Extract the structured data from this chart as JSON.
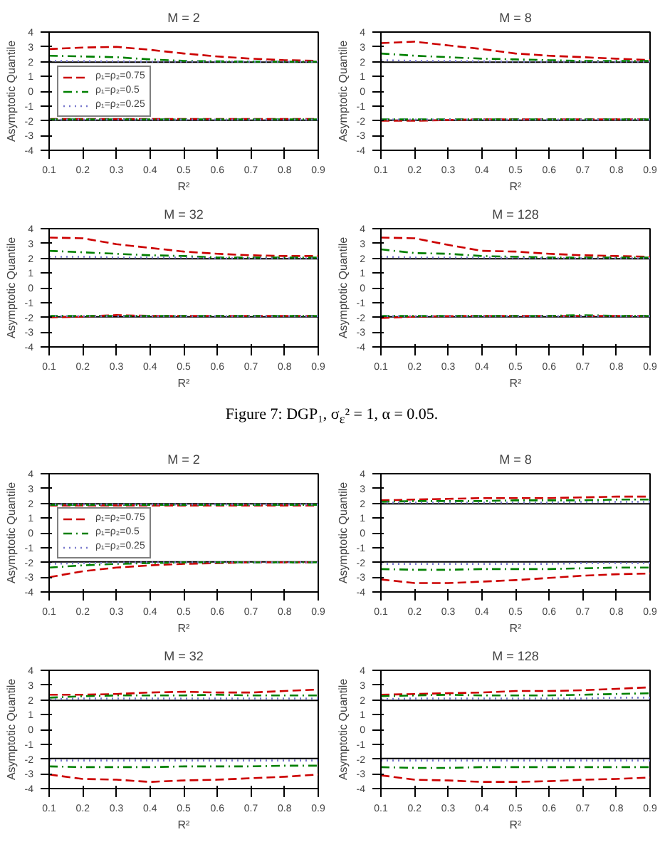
{
  "chart_data": [
    {
      "type": "line",
      "title": "M = 2",
      "xlabel": "R²",
      "ylabel": "Asymptotic Quantile",
      "x": [
        0.1,
        0.2,
        0.3,
        0.4,
        0.5,
        0.6,
        0.7,
        0.8,
        0.9
      ],
      "xlim": [
        0.1,
        0.9
      ],
      "xticks": [
        0.1,
        0.2,
        0.3,
        0.4,
        0.5,
        0.6,
        0.7,
        0.8,
        0.9
      ],
      "ylim": [
        -4,
        4
      ],
      "yticks": [
        -4,
        -3,
        -2,
        -1,
        0,
        1,
        2,
        3,
        4
      ],
      "grid": false,
      "legend": "left",
      "marker": "none",
      "ref_lines": [
        {
          "axis": "y",
          "value": 1.96,
          "color": "#000000"
        },
        {
          "axis": "y",
          "value": -1.96,
          "color": "#000000"
        }
      ],
      "series": [
        {
          "name": "ρ₁=ρ₂=0.75",
          "color": "#cc0000",
          "line_style": "dashed",
          "values": [
            2.85,
            2.95,
            3.0,
            2.8,
            2.55,
            2.35,
            2.2,
            2.1,
            2.05
          ]
        },
        {
          "name": "ρ₁=ρ₂=0.5",
          "color": "#008000",
          "line_style": "dashdot",
          "values": [
            2.4,
            2.35,
            2.3,
            2.15,
            2.05,
            2.02,
            2.0,
            2.0,
            2.0
          ]
        },
        {
          "name": "ρ₁=ρ₂=0.25",
          "color": "#7777cc",
          "line_style": "dotted",
          "values": [
            2.05,
            2.03,
            2.02,
            2.0,
            2.0,
            2.0,
            2.0,
            2.0,
            2.0
          ]
        },
        {
          "color": "#cc0000",
          "line_style": "dashed",
          "values": [
            -1.88,
            -1.88,
            -1.88,
            -1.88,
            -1.88,
            -1.88,
            -1.88,
            -1.88,
            -1.88
          ]
        },
        {
          "color": "#008000",
          "line_style": "dashdot",
          "values": [
            -1.9,
            -1.9,
            -1.9,
            -1.9,
            -1.9,
            -1.9,
            -1.9,
            -1.9,
            -1.9
          ]
        },
        {
          "color": "#7777cc",
          "line_style": "dotted",
          "values": [
            -1.92,
            -1.92,
            -1.92,
            -1.92,
            -1.92,
            -1.92,
            -1.92,
            -1.92,
            -1.92
          ]
        }
      ]
    },
    {
      "type": "line",
      "title": "M = 8",
      "xlabel": "R²",
      "ylabel": "Asymptotic Quantile",
      "x": [
        0.1,
        0.2,
        0.3,
        0.4,
        0.5,
        0.6,
        0.7,
        0.8,
        0.9
      ],
      "xlim": [
        0.1,
        0.9
      ],
      "xticks": [
        0.1,
        0.2,
        0.3,
        0.4,
        0.5,
        0.6,
        0.7,
        0.8,
        0.9
      ],
      "ylim": [
        -4,
        4
      ],
      "yticks": [
        -4,
        -3,
        -2,
        -1,
        0,
        1,
        2,
        3,
        4
      ],
      "grid": false,
      "legend": false,
      "marker": "none",
      "ref_lines": [
        {
          "axis": "y",
          "value": 1.96,
          "color": "#000000"
        },
        {
          "axis": "y",
          "value": -1.96,
          "color": "#000000"
        }
      ],
      "series": [
        {
          "color": "#cc0000",
          "line_style": "dashed",
          "values": [
            3.25,
            3.35,
            3.1,
            2.85,
            2.55,
            2.4,
            2.3,
            2.2,
            2.1
          ]
        },
        {
          "color": "#008000",
          "line_style": "dashdot",
          "values": [
            2.55,
            2.4,
            2.3,
            2.2,
            2.15,
            2.1,
            2.05,
            2.05,
            2.05
          ]
        },
        {
          "color": "#7777cc",
          "line_style": "dotted",
          "values": [
            2.1,
            2.05,
            2.05,
            2.02,
            2.0,
            2.0,
            2.0,
            2.0,
            2.0
          ]
        },
        {
          "color": "#cc0000",
          "line_style": "dashed",
          "values": [
            -2.0,
            -2.0,
            -1.95,
            -1.9,
            -1.9,
            -1.9,
            -1.9,
            -1.9,
            -1.9
          ]
        },
        {
          "color": "#008000",
          "line_style": "dashdot",
          "values": [
            -1.9,
            -1.9,
            -1.9,
            -1.9,
            -1.9,
            -1.9,
            -1.9,
            -1.9,
            -1.9
          ]
        },
        {
          "color": "#7777cc",
          "line_style": "dotted",
          "values": [
            -1.92,
            -1.92,
            -1.92,
            -1.92,
            -1.92,
            -1.92,
            -1.92,
            -1.92,
            -1.92
          ]
        }
      ]
    },
    {
      "type": "line",
      "title": "M = 32",
      "xlabel": "R²",
      "ylabel": "Asymptotic Quantile",
      "x": [
        0.1,
        0.2,
        0.3,
        0.4,
        0.5,
        0.6,
        0.7,
        0.8,
        0.9
      ],
      "xlim": [
        0.1,
        0.9
      ],
      "xticks": [
        0.1,
        0.2,
        0.3,
        0.4,
        0.5,
        0.6,
        0.7,
        0.8,
        0.9
      ],
      "ylim": [
        -4,
        4
      ],
      "yticks": [
        -4,
        -3,
        -2,
        -1,
        0,
        1,
        2,
        3,
        4
      ],
      "grid": false,
      "legend": false,
      "marker": "none",
      "ref_lines": [
        {
          "axis": "y",
          "value": 1.96,
          "color": "#000000"
        },
        {
          "axis": "y",
          "value": -1.96,
          "color": "#000000"
        }
      ],
      "series": [
        {
          "color": "#cc0000",
          "line_style": "dashed",
          "values": [
            3.4,
            3.35,
            2.95,
            2.7,
            2.45,
            2.3,
            2.2,
            2.15,
            2.15
          ]
        },
        {
          "color": "#008000",
          "line_style": "dashdot",
          "values": [
            2.5,
            2.4,
            2.3,
            2.2,
            2.15,
            2.05,
            2.05,
            2.05,
            2.05
          ]
        },
        {
          "color": "#7777cc",
          "line_style": "dotted",
          "values": [
            2.1,
            2.1,
            2.05,
            2.05,
            2.05,
            2.0,
            2.0,
            2.0,
            2.0
          ]
        },
        {
          "color": "#cc0000",
          "line_style": "dashed",
          "values": [
            -2.0,
            -1.95,
            -1.85,
            -1.9,
            -1.9,
            -1.9,
            -1.9,
            -1.9,
            -1.9
          ]
        },
        {
          "color": "#008000",
          "line_style": "dashdot",
          "values": [
            -1.9,
            -1.9,
            -1.9,
            -1.9,
            -1.9,
            -1.9,
            -1.9,
            -1.9,
            -1.9
          ]
        },
        {
          "color": "#7777cc",
          "line_style": "dotted",
          "values": [
            -1.92,
            -1.92,
            -1.92,
            -1.92,
            -1.92,
            -1.92,
            -1.92,
            -1.92,
            -1.92
          ]
        }
      ]
    },
    {
      "type": "line",
      "title": "M = 128",
      "xlabel": "R²",
      "ylabel": "Asymptotic Quantile",
      "x": [
        0.1,
        0.2,
        0.3,
        0.4,
        0.5,
        0.6,
        0.7,
        0.8,
        0.9
      ],
      "xlim": [
        0.1,
        0.9
      ],
      "xticks": [
        0.1,
        0.2,
        0.3,
        0.4,
        0.5,
        0.6,
        0.7,
        0.8,
        0.9
      ],
      "ylim": [
        -4,
        4
      ],
      "yticks": [
        -4,
        -3,
        -2,
        -1,
        0,
        1,
        2,
        3,
        4
      ],
      "grid": false,
      "legend": false,
      "marker": "none",
      "annotations": [
        "Figure 7: DGP₁, σ$_{ε}$² = 1, α = 0.05."
      ],
      "ref_lines": [
        {
          "axis": "y",
          "value": 1.96,
          "color": "#000000"
        },
        {
          "axis": "y",
          "value": -1.96,
          "color": "#000000"
        }
      ],
      "series": [
        {
          "color": "#cc0000",
          "line_style": "dashed",
          "values": [
            3.4,
            3.35,
            2.9,
            2.5,
            2.45,
            2.3,
            2.2,
            2.15,
            2.1
          ]
        },
        {
          "color": "#008000",
          "line_style": "dashdot",
          "values": [
            2.6,
            2.35,
            2.3,
            2.15,
            2.1,
            2.05,
            2.05,
            2.05,
            2.05
          ]
        },
        {
          "color": "#7777cc",
          "line_style": "dotted",
          "values": [
            2.1,
            2.05,
            2.05,
            2.05,
            2.02,
            2.0,
            2.0,
            2.0,
            2.0
          ]
        },
        {
          "color": "#cc0000",
          "line_style": "dashed",
          "values": [
            -2.05,
            -1.95,
            -1.92,
            -1.9,
            -1.9,
            -1.9,
            -1.9,
            -1.9,
            -1.9
          ]
        },
        {
          "color": "#008000",
          "line_style": "dashdot",
          "values": [
            -1.9,
            -1.9,
            -1.9,
            -1.9,
            -1.9,
            -1.9,
            -1.85,
            -1.9,
            -1.9
          ]
        },
        {
          "color": "#7777cc",
          "line_style": "dotted",
          "values": [
            -1.92,
            -1.92,
            -1.92,
            -1.92,
            -1.92,
            -1.92,
            -1.92,
            -1.92,
            -1.92
          ]
        }
      ]
    },
    {
      "type": "line",
      "title": "M = 2",
      "xlabel": "R²",
      "ylabel": "Asymptotic Quantile",
      "x": [
        0.1,
        0.2,
        0.3,
        0.4,
        0.5,
        0.6,
        0.7,
        0.8,
        0.9
      ],
      "xlim": [
        0.1,
        0.9
      ],
      "xticks": [
        0.1,
        0.2,
        0.3,
        0.4,
        0.5,
        0.6,
        0.7,
        0.8,
        0.9
      ],
      "ylim": [
        -4,
        4
      ],
      "yticks": [
        -4,
        -3,
        -2,
        -1,
        0,
        1,
        2,
        3,
        4
      ],
      "grid": false,
      "legend": "left",
      "marker": "none",
      "ref_lines": [
        {
          "axis": "y",
          "value": 1.96,
          "color": "#000000"
        },
        {
          "axis": "y",
          "value": -1.96,
          "color": "#000000"
        }
      ],
      "series": [
        {
          "name": "ρ₁=ρ₂=0.75",
          "color": "#cc0000",
          "line_style": "dashed",
          "values": [
            1.85,
            1.85,
            1.85,
            1.85,
            1.85,
            1.85,
            1.85,
            1.85,
            1.85
          ]
        },
        {
          "name": "ρ₁=ρ₂=0.5",
          "color": "#008000",
          "line_style": "dashdot",
          "values": [
            1.9,
            1.9,
            1.9,
            1.9,
            1.9,
            1.9,
            1.9,
            1.9,
            1.9
          ]
        },
        {
          "name": "ρ₁=ρ₂=0.25",
          "color": "#7777cc",
          "line_style": "dotted",
          "values": [
            1.92,
            1.92,
            1.92,
            1.92,
            1.92,
            1.92,
            1.92,
            1.92,
            1.92
          ]
        },
        {
          "color": "#cc0000",
          "line_style": "dashed",
          "values": [
            -3.0,
            -2.6,
            -2.35,
            -2.2,
            -2.1,
            -2.05,
            -2.0,
            -2.0,
            -2.0
          ]
        },
        {
          "color": "#008000",
          "line_style": "dashdot",
          "values": [
            -2.35,
            -2.2,
            -2.1,
            -2.05,
            -2.0,
            -2.0,
            -2.0,
            -2.0,
            -2.0
          ]
        },
        {
          "color": "#7777cc",
          "line_style": "dotted",
          "values": [
            -2.1,
            -2.05,
            -2.02,
            -2.0,
            -2.0,
            -2.0,
            -2.0,
            -2.0,
            -2.0
          ]
        }
      ]
    },
    {
      "type": "line",
      "title": "M = 8",
      "xlabel": "R²",
      "ylabel": "Asymptotic Quantile",
      "x": [
        0.1,
        0.2,
        0.3,
        0.4,
        0.5,
        0.6,
        0.7,
        0.8,
        0.9
      ],
      "xlim": [
        0.1,
        0.9
      ],
      "xticks": [
        0.1,
        0.2,
        0.3,
        0.4,
        0.5,
        0.6,
        0.7,
        0.8,
        0.9
      ],
      "ylim": [
        -4,
        4
      ],
      "yticks": [
        -4,
        -3,
        -2,
        -1,
        0,
        1,
        2,
        3,
        4
      ],
      "grid": false,
      "legend": false,
      "marker": "none",
      "ref_lines": [
        {
          "axis": "y",
          "value": 1.96,
          "color": "#000000"
        },
        {
          "axis": "y",
          "value": -1.96,
          "color": "#000000"
        }
      ],
      "series": [
        {
          "color": "#cc0000",
          "line_style": "dashed",
          "values": [
            2.2,
            2.25,
            2.3,
            2.35,
            2.35,
            2.35,
            2.4,
            2.45,
            2.45
          ]
        },
        {
          "color": "#008000",
          "line_style": "dashdot",
          "values": [
            2.1,
            2.15,
            2.15,
            2.15,
            2.2,
            2.2,
            2.2,
            2.25,
            2.25
          ]
        },
        {
          "color": "#7777cc",
          "line_style": "dotted",
          "values": [
            2.05,
            2.05,
            2.05,
            2.05,
            2.05,
            2.05,
            2.1,
            2.1,
            2.1
          ]
        },
        {
          "color": "#cc0000",
          "line_style": "dashed",
          "values": [
            -3.15,
            -3.4,
            -3.4,
            -3.3,
            -3.2,
            -3.05,
            -2.9,
            -2.8,
            -2.75
          ]
        },
        {
          "color": "#008000",
          "line_style": "dashdot",
          "values": [
            -2.45,
            -2.5,
            -2.5,
            -2.45,
            -2.45,
            -2.45,
            -2.4,
            -2.35,
            -2.35
          ]
        },
        {
          "color": "#7777cc",
          "line_style": "dotted",
          "values": [
            -2.1,
            -2.1,
            -2.1,
            -2.1,
            -2.1,
            -2.1,
            -2.05,
            -2.05,
            -2.05
          ]
        }
      ]
    },
    {
      "type": "line",
      "title": "M = 32",
      "xlabel": "R²",
      "ylabel": "Asymptotic Quantile",
      "x": [
        0.1,
        0.2,
        0.3,
        0.4,
        0.5,
        0.6,
        0.7,
        0.8,
        0.9
      ],
      "xlim": [
        0.1,
        0.9
      ],
      "xticks": [
        0.1,
        0.2,
        0.3,
        0.4,
        0.5,
        0.6,
        0.7,
        0.8,
        0.9
      ],
      "ylim": [
        -4,
        4
      ],
      "yticks": [
        -4,
        -3,
        -2,
        -1,
        0,
        1,
        2,
        3,
        4
      ],
      "grid": false,
      "legend": false,
      "marker": "none",
      "ref_lines": [
        {
          "axis": "y",
          "value": 1.96,
          "color": "#000000"
        },
        {
          "axis": "y",
          "value": -1.96,
          "color": "#000000"
        }
      ],
      "series": [
        {
          "color": "#cc0000",
          "line_style": "dashed",
          "values": [
            2.35,
            2.35,
            2.4,
            2.5,
            2.55,
            2.5,
            2.5,
            2.6,
            2.7
          ]
        },
        {
          "color": "#008000",
          "line_style": "dashdot",
          "values": [
            2.15,
            2.25,
            2.3,
            2.3,
            2.3,
            2.35,
            2.3,
            2.3,
            2.3
          ]
        },
        {
          "color": "#7777cc",
          "line_style": "dotted",
          "values": [
            2.05,
            2.1,
            2.1,
            2.1,
            2.1,
            2.1,
            2.1,
            2.1,
            2.1
          ]
        },
        {
          "color": "#cc0000",
          "line_style": "dashed",
          "values": [
            -3.05,
            -3.35,
            -3.4,
            -3.55,
            -3.45,
            -3.4,
            -3.3,
            -3.2,
            -3.05
          ]
        },
        {
          "color": "#008000",
          "line_style": "dashdot",
          "values": [
            -2.5,
            -2.55,
            -2.55,
            -2.55,
            -2.5,
            -2.5,
            -2.5,
            -2.45,
            -2.45
          ]
        },
        {
          "color": "#7777cc",
          "line_style": "dotted",
          "values": [
            -2.1,
            -2.1,
            -2.1,
            -2.1,
            -2.1,
            -2.1,
            -2.1,
            -2.1,
            -2.1
          ]
        }
      ]
    },
    {
      "type": "line",
      "title": "M = 128",
      "xlabel": "R²",
      "ylabel": "Asymptotic Quantile",
      "x": [
        0.1,
        0.2,
        0.3,
        0.4,
        0.5,
        0.6,
        0.7,
        0.8,
        0.9
      ],
      "xlim": [
        0.1,
        0.9
      ],
      "xticks": [
        0.1,
        0.2,
        0.3,
        0.4,
        0.5,
        0.6,
        0.7,
        0.8,
        0.9
      ],
      "ylim": [
        -4,
        4
      ],
      "yticks": [
        -4,
        -3,
        -2,
        -1,
        0,
        1,
        2,
        3,
        4
      ],
      "grid": false,
      "legend": false,
      "marker": "none",
      "ref_lines": [
        {
          "axis": "y",
          "value": 1.96,
          "color": "#000000"
        },
        {
          "axis": "y",
          "value": -1.96,
          "color": "#000000"
        }
      ],
      "series": [
        {
          "color": "#cc0000",
          "line_style": "dashed",
          "values": [
            2.35,
            2.4,
            2.45,
            2.5,
            2.6,
            2.6,
            2.65,
            2.75,
            2.85
          ]
        },
        {
          "color": "#008000",
          "line_style": "dashdot",
          "values": [
            2.25,
            2.3,
            2.35,
            2.3,
            2.3,
            2.3,
            2.35,
            2.4,
            2.45
          ]
        },
        {
          "color": "#7777cc",
          "line_style": "dotted",
          "values": [
            2.05,
            2.1,
            2.1,
            2.1,
            2.1,
            2.1,
            2.1,
            2.15,
            2.15
          ]
        },
        {
          "color": "#cc0000",
          "line_style": "dashed",
          "values": [
            -3.1,
            -3.4,
            -3.45,
            -3.55,
            -3.55,
            -3.5,
            -3.4,
            -3.35,
            -3.25
          ]
        },
        {
          "color": "#008000",
          "line_style": "dashdot",
          "values": [
            -2.55,
            -2.6,
            -2.6,
            -2.55,
            -2.55,
            -2.55,
            -2.55,
            -2.55,
            -2.55
          ]
        },
        {
          "color": "#7777cc",
          "line_style": "dotted",
          "values": [
            -2.1,
            -2.1,
            -2.1,
            -2.1,
            -2.1,
            -2.1,
            -2.1,
            -2.1,
            -2.1
          ]
        }
      ]
    }
  ]
}
